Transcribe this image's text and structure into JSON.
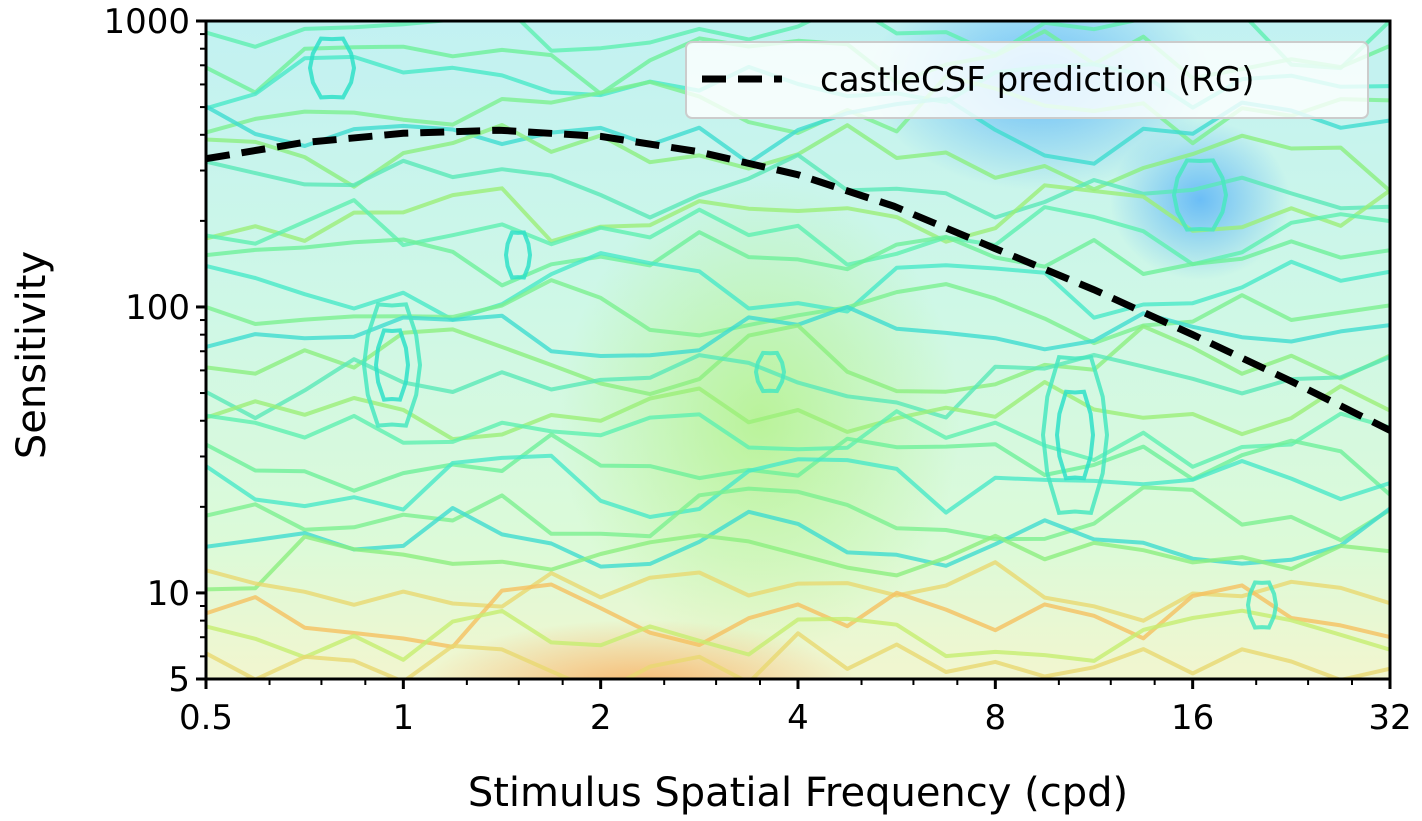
{
  "chart_data": {
    "type": "contour",
    "title": "",
    "xlabel": "Stimulus Spatial Frequency (cpd)",
    "ylabel": "Sensitivity",
    "xscale": "log2",
    "yscale": "log10",
    "xlim": [
      0.5,
      32
    ],
    "ylim": [
      5,
      1000
    ],
    "x_ticks": [
      {
        "value": 0.5,
        "label": "0.5"
      },
      {
        "value": 1,
        "label": "1"
      },
      {
        "value": 2,
        "label": "2"
      },
      {
        "value": 4,
        "label": "4"
      },
      {
        "value": 8,
        "label": "8"
      },
      {
        "value": 16,
        "label": "16"
      },
      {
        "value": 32,
        "label": "32"
      }
    ],
    "y_ticks": [
      {
        "value": 5,
        "label": "5"
      },
      {
        "value": 10,
        "label": "10"
      },
      {
        "value": 100,
        "label": "100"
      },
      {
        "value": 1000,
        "label": "1000"
      }
    ],
    "legend": {
      "placement": "top-right",
      "entries": [
        {
          "label": "castleCSF prediction (RG)",
          "style": "dashed",
          "color": "#000000"
        }
      ]
    },
    "series": [
      {
        "name": "castleCSF prediction (RG)",
        "style": "dashed",
        "color": "#000000",
        "x": [
          0.5,
          0.7,
          1.0,
          1.4,
          2.0,
          2.8,
          4.0,
          5.6,
          8.0,
          11.3,
          16.0,
          22.6,
          32.0
        ],
        "y": [
          330,
          375,
          405,
          415,
          395,
          350,
          290,
          225,
          160,
          115,
          80,
          55,
          37
        ]
      }
    ],
    "contour_colormap": [
      "#f9a24d",
      "#f5d65a",
      "#a8ee6c",
      "#63f08e",
      "#2fe7c1",
      "#1fc6e6",
      "#1e90ff"
    ],
    "contour_note": ""
  }
}
